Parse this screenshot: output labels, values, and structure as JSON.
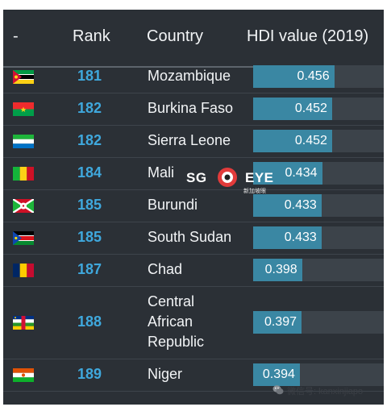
{
  "table": {
    "headers": {
      "flag": "-",
      "rank": "Rank",
      "country": "Country",
      "hdi": "HDI value (2019)"
    },
    "rows": [
      {
        "flag_icon": "mozambique-flag-icon",
        "rank": "181",
        "country": "Mozambique",
        "hdi": 0.456,
        "hdi_label": "0.456"
      },
      {
        "flag_icon": "burkina-faso-flag-icon",
        "rank": "182",
        "country": "Burkina Faso",
        "hdi": 0.452,
        "hdi_label": "0.452"
      },
      {
        "flag_icon": "sierra-leone-flag-icon",
        "rank": "182",
        "country": "Sierra Leone",
        "hdi": 0.452,
        "hdi_label": "0.452"
      },
      {
        "flag_icon": "mali-flag-icon",
        "rank": "184",
        "country": "Mali",
        "hdi": 0.434,
        "hdi_label": "0.434"
      },
      {
        "flag_icon": "burundi-flag-icon",
        "rank": "185",
        "country": "Burundi",
        "hdi": 0.433,
        "hdi_label": "0.433"
      },
      {
        "flag_icon": "south-sudan-flag-icon",
        "rank": "185",
        "country": "South Sudan",
        "hdi": 0.433,
        "hdi_label": "0.433"
      },
      {
        "flag_icon": "chad-flag-icon",
        "rank": "187",
        "country": "Chad",
        "hdi": 0.398,
        "hdi_label": "0.398"
      },
      {
        "flag_icon": "central-african-republic-flag-icon",
        "rank": "188",
        "country": "Central African Republic",
        "country_lines": [
          "Central",
          "African",
          "Republic"
        ],
        "hdi": 0.397,
        "hdi_label": "0.397"
      },
      {
        "flag_icon": "niger-flag-icon",
        "rank": "189",
        "country": "Niger",
        "hdi": 0.394,
        "hdi_label": "0.394"
      }
    ]
  },
  "watermark": {
    "left": "SG",
    "right": "EYE",
    "sub": "新加坡眼"
  },
  "wechat": {
    "label": "微信号: kanxinjiapo"
  },
  "colors": {
    "panel": "#2b3036",
    "bar": "#3a87a3",
    "rank": "#3fa8dd",
    "text": "#f2f4f6"
  }
}
